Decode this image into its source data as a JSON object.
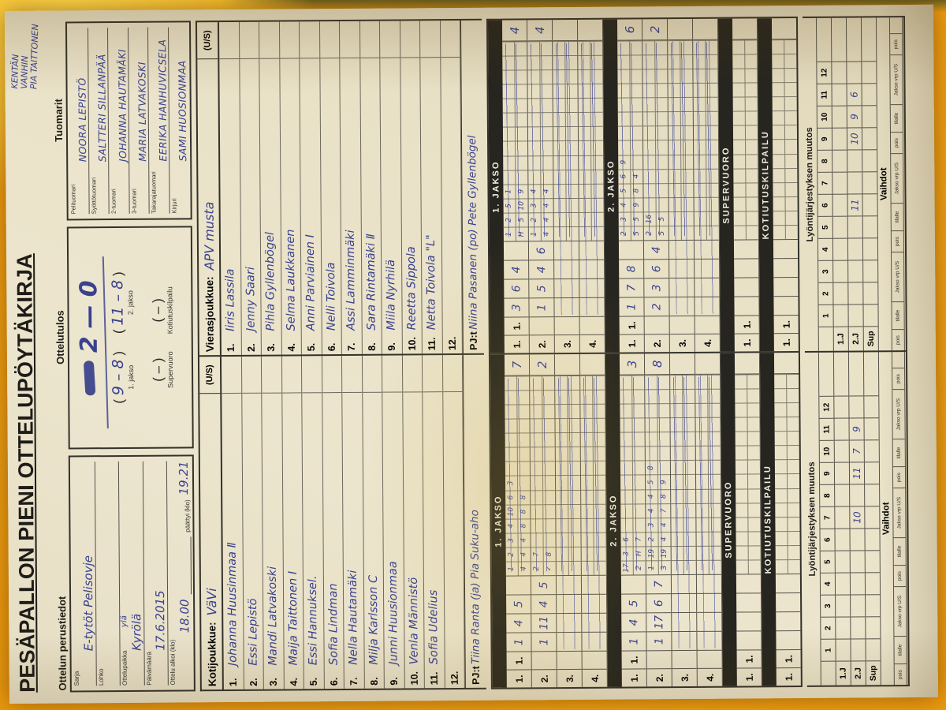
{
  "title": "PESÄPALLON PIENI OTTELUPÖYTÄKIRJA",
  "corner_note": [
    "KENTÄN",
    "VANHIN",
    "PIA TAITTONEN"
  ],
  "colors": {
    "ink_blue": "#39418f",
    "print_black": "#25231f",
    "paper": "#eae3cb",
    "table_orange": "#ec9a0e"
  },
  "basic_info": {
    "header": "Ottelun perustiedot",
    "fields": [
      {
        "label": "Sarja",
        "value": "E-tytöt Pelisovje"
      },
      {
        "label": "Lohko",
        "value": ""
      },
      {
        "label": "Ottelupaikka",
        "value": "Kyrölä",
        "note": "ylä"
      },
      {
        "label": "Päivämäärä",
        "value": "17.6.2015"
      },
      {
        "label": "Ottelu alkoi (klo)",
        "value": "18.00",
        "label2": "päättyi (klo)",
        "value2": "19.21"
      }
    ]
  },
  "result": {
    "header": "Ottelutulos",
    "score": {
      "home": "2",
      "sep": "—",
      "away": "0"
    },
    "periods": [
      {
        "label": "1. jakso",
        "value": "9 – 8",
        "handwritten": true
      },
      {
        "label": "2. jakso",
        "value": "11 – 8",
        "handwritten": true
      }
    ],
    "extras": [
      {
        "label": "Supervuoro",
        "value": "–",
        "handwritten": false
      },
      {
        "label": "Kotiutuskilpailu",
        "value": "–",
        "handwritten": false
      }
    ]
  },
  "officials": {
    "header": "Tuomarit",
    "rows": [
      {
        "label": "Pelituomari",
        "value": "NOORA LEPISTÖ"
      },
      {
        "label": "Syöttötuomari",
        "value": "SALTTERI SILLANPÄÄ"
      },
      {
        "label": "2-tuomari",
        "value": "JOHANNA HAUTAMÄKI"
      },
      {
        "label": "3-tuomari",
        "value": "MARIA LATVAKOSKI"
      },
      {
        "label": "Takarajatuomari",
        "value": "EERIKA HANHUVICSELA"
      },
      {
        "label": "Kirjuri",
        "value": "SAMI HUOSIONMAA"
      }
    ]
  },
  "rosters": {
    "us_header": "(U/S)",
    "home": {
      "label": "Kotijoukkue:",
      "team": "VäVi",
      "pj_label": "PJ:t",
      "pj": "Tiina Ranta (ja) Pia Suku-aho",
      "players": [
        {
          "no": "1.",
          "name": "Johanna Huusinmaa Ⅱ"
        },
        {
          "no": "2.",
          "name": "Essi Lepistö"
        },
        {
          "no": "3.",
          "name": "Mandi Latvakoski"
        },
        {
          "no": "4.",
          "name": "Maija Taittonen Ⅰ"
        },
        {
          "no": "5.",
          "name": "Essi Hannuksel."
        },
        {
          "no": "6.",
          "name": "Sofia Lindman"
        },
        {
          "no": "7.",
          "name": "Nella Hautamäki"
        },
        {
          "no": "8.",
          "name": "Milja Karlsson C"
        },
        {
          "no": "9.",
          "name": "Junni Huusionmaa"
        },
        {
          "no": "10.",
          "name": "Venla Männistö"
        },
        {
          "no": "11.",
          "name": "Sofia Udelius"
        },
        {
          "no": "12.",
          "name": ""
        }
      ]
    },
    "away": {
      "label": "Vierasjoukkue:",
      "team": "APV musta",
      "pj_label": "PJ:t",
      "pj": "Niina Pasanen (po) Pete Gyllenbögel",
      "players": [
        {
          "no": "1.",
          "name": "Iiris Lassila"
        },
        {
          "no": "2.",
          "name": "Jenny Saari"
        },
        {
          "no": "3.",
          "name": "Pihla Gyllenbögel"
        },
        {
          "no": "4.",
          "name": "Selma Laukkanen"
        },
        {
          "no": "5.",
          "name": "Anni Parviainen Ⅰ"
        },
        {
          "no": "6.",
          "name": "Nelli Toivola"
        },
        {
          "no": "7.",
          "name": "Assi Lamminmäki"
        },
        {
          "no": "8.",
          "name": "Sara Rintamäki Ⅱ"
        },
        {
          "no": "9.",
          "name": "Miila Nyrhilä"
        },
        {
          "no": "10.",
          "name": "Reetta Sippola"
        },
        {
          "no": "11.",
          "name": "Netta Toivola \"L\""
        },
        {
          "no": "12.",
          "name": ""
        }
      ]
    }
  },
  "scoring": {
    "bands": {
      "p1": "1. JAKSO",
      "p2": "2. JAKSO",
      "super": "SUPERVUORO",
      "kotiutus": "KOTIUTUSKILPAILU"
    },
    "row_labels": [
      "1.",
      "2.",
      "3.",
      "4."
    ],
    "first_cell": "1.",
    "single_row_labels": [
      "1.",
      "1."
    ],
    "home": {
      "p1": [
        {
          "cells": [
            "1",
            "4",
            "5",
            ""
          ],
          "top": "1 2 3 4 10 6 3",
          "bottom": "4 4 4 8 8 8",
          "total": "7"
        },
        {
          "cells": [
            "1",
            "11",
            "4",
            "5"
          ],
          "top": "2 7",
          "bottom": "✓ 8",
          "total": "2"
        },
        {},
        {}
      ],
      "p2": [
        {
          "cells": [
            "1",
            "4",
            "5",
            ""
          ],
          "top": "17 3 6",
          "bottom": "2 H 7",
          "total": "3"
        },
        {
          "cells": [
            "1",
            "17",
            "6",
            "7"
          ],
          "top": "1 19 2 3 4 4 5 8",
          "bottom": "3 19 4 4 7 8 9",
          "total": "8"
        },
        {},
        {}
      ]
    },
    "away": {
      "p1": [
        {
          "cells": [
            "3",
            "6",
            "4",
            ""
          ],
          "top": "1 2 5 1",
          "bottom": "H 5 10 9",
          "total": "4"
        },
        {
          "cells": [
            "1",
            "5",
            "4",
            "6"
          ],
          "top": "1 2 3 4",
          "bottom": "4 4 4 4",
          "total": "4"
        },
        {},
        {}
      ],
      "p2": [
        {
          "cells": [
            "1",
            "7",
            "8",
            ""
          ],
          "top": "2 3 4 5 6 9",
          "bottom": "5 5 9 8 4",
          "total": "6"
        },
        {
          "cells": [
            "2",
            "3",
            "6",
            "4"
          ],
          "top": "2 16",
          "bottom": "5 5",
          "total": "2"
        },
        {},
        {}
      ]
    }
  },
  "batting_order": {
    "header": "Lyöntijärjestyksen muutos",
    "columns": [
      "1",
      "2",
      "3",
      "4",
      "5",
      "6",
      "7",
      "8",
      "9",
      "10",
      "11",
      "12"
    ],
    "row_labels": [
      "1.J",
      "2.J",
      "Sup"
    ],
    "home_marks": {
      "2.J": {
        "7": "10",
        "9": "11",
        "10": "7",
        "11": "9"
      }
    },
    "away_marks": {
      "2.J": {
        "6": "11",
        "9": "10",
        "10": "9",
        "11": "6"
      }
    }
  },
  "substitutions": {
    "header": "Vaihdot",
    "cell_labels": [
      "pois",
      "tilalle",
      "Jakso vrp U/S"
    ],
    "groups": 3,
    "tail": "pois"
  }
}
